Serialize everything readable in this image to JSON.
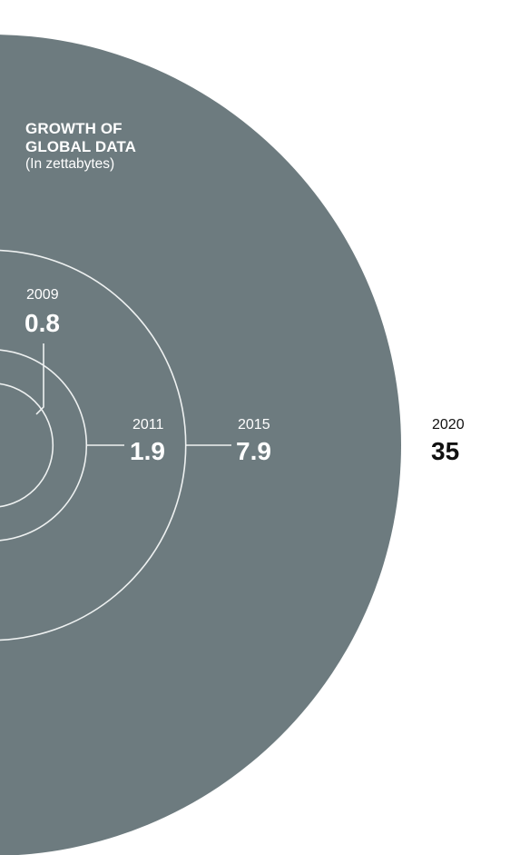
{
  "colors": {
    "fill": "#6d7b7f",
    "ring_stroke": "#eef1f1",
    "outside_text": "#111111",
    "inside_text": "#ffffff",
    "background": "#ffffff"
  },
  "chart_data": {
    "type": "bubble-rings",
    "title_lines": [
      "GROWTH OF",
      "GLOBAL DATA"
    ],
    "subtitle": "(In zettabytes)",
    "unit": "zettabytes",
    "points": [
      {
        "year": "2009",
        "value_label": "0.8",
        "value": 0.8
      },
      {
        "year": "2011",
        "value_label": "1.9",
        "value": 1.9
      },
      {
        "year": "2015",
        "value_label": "7.9",
        "value": 7.9
      },
      {
        "year": "2020",
        "value_label": "35",
        "value": 35
      }
    ]
  }
}
